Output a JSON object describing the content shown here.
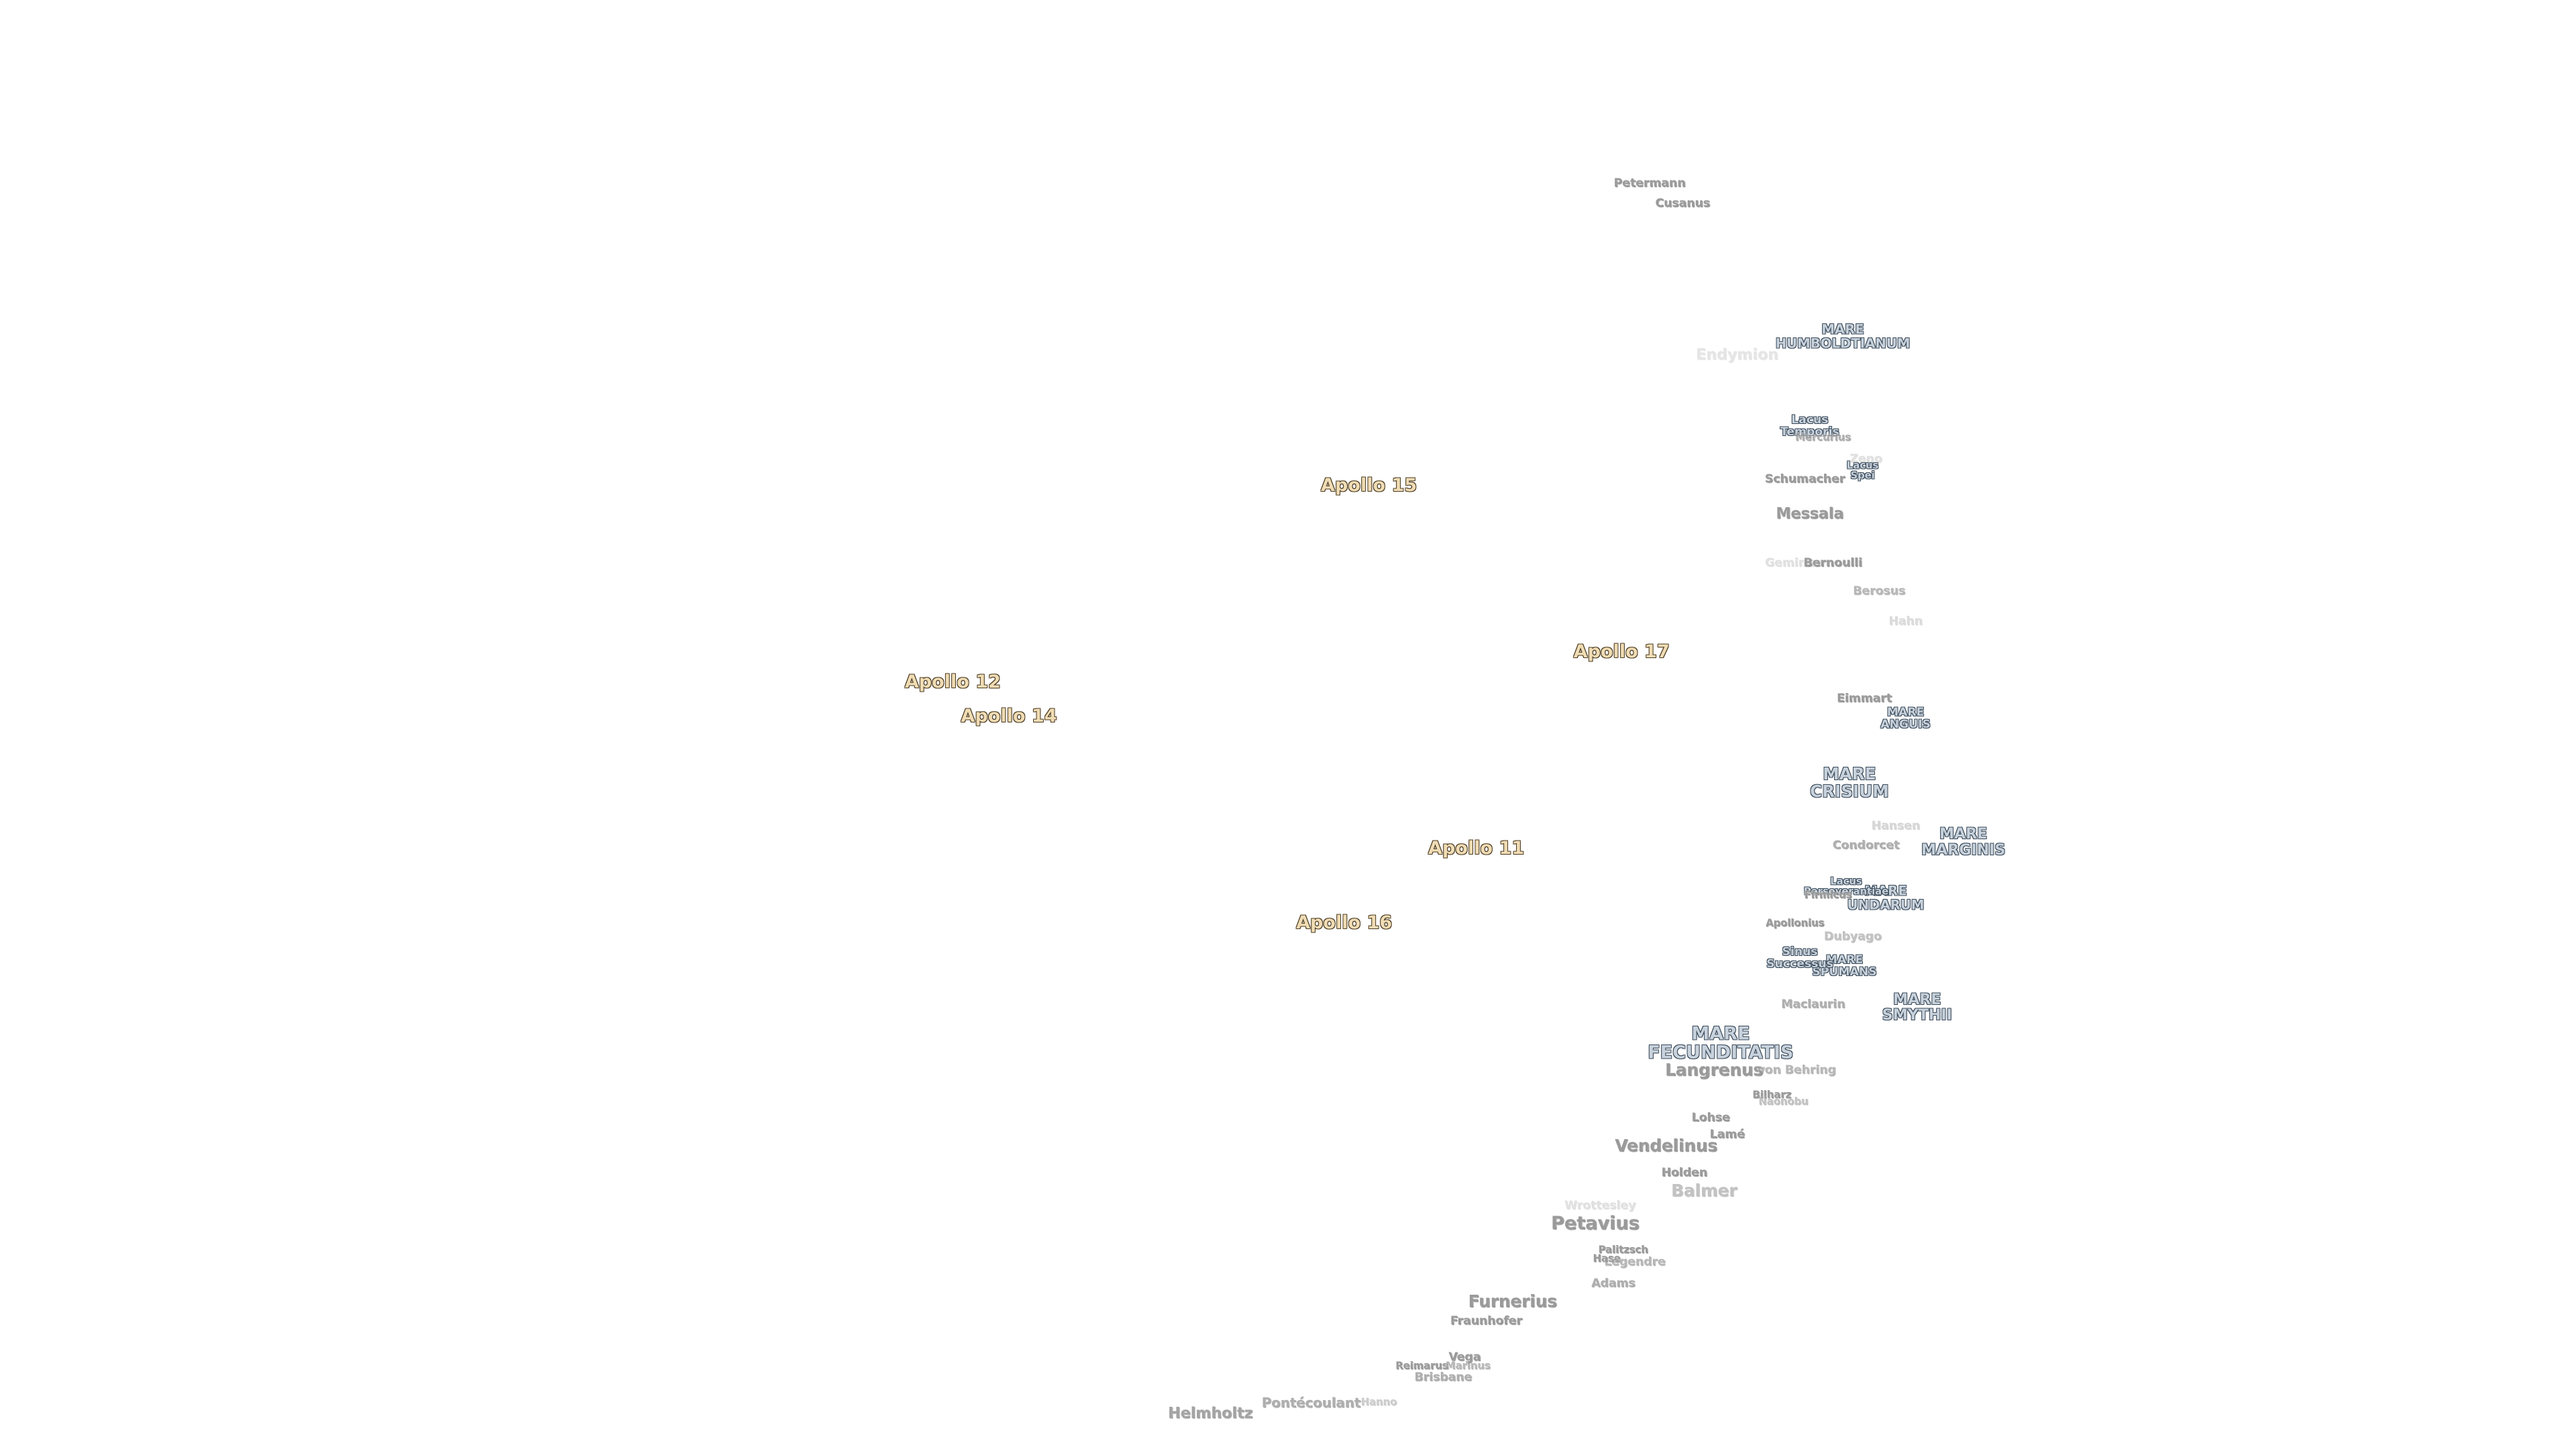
{
  "apollo_sites": [
    "Apollo 15",
    "Apollo 17",
    "Apollo 12",
    "Apollo 14",
    "Apollo 11",
    "Apollo 16"
  ],
  "maria": [
    "MARE HUMBOLDTIANUM",
    "MARE ANGUIS",
    "MARE CRISIUM",
    "MARE MARGINIS",
    "MARE UNDARUM",
    "MARE SPUMANS",
    "MARE SMYTHII",
    "MARE FECUNDITATIS",
    "Lacus Temporis",
    "Lacus Spei",
    "Lacus Perseverantiae",
    "Sinus Successus"
  ],
  "craters": [
    "Petermann",
    "Cusanus",
    "Endymion",
    "Mercurius",
    "Zeno",
    "Schumacher",
    "Messala",
    "Geminus",
    "Bernoulli",
    "Berosus",
    "Hahn",
    "Eimmart",
    "Hansen",
    "Condorcet",
    "Firmicus",
    "Apollonius",
    "Dubyago",
    "Maclaurin",
    "Langrenus",
    "von Behring",
    "Bilharz",
    "Naonobu",
    "Lohse",
    "Lamé",
    "Vendelinus",
    "Holden",
    "Balmer",
    "Wrottesley",
    "Petavius",
    "Palitzsch",
    "Hase",
    "Legendre",
    "Adams",
    "Furnerius",
    "Fraunhofer",
    "Vega",
    "Reimarus",
    "Marinus",
    "Brisbane",
    "Hanno",
    "Pontécoulant",
    "Helmholtz"
  ]
}
